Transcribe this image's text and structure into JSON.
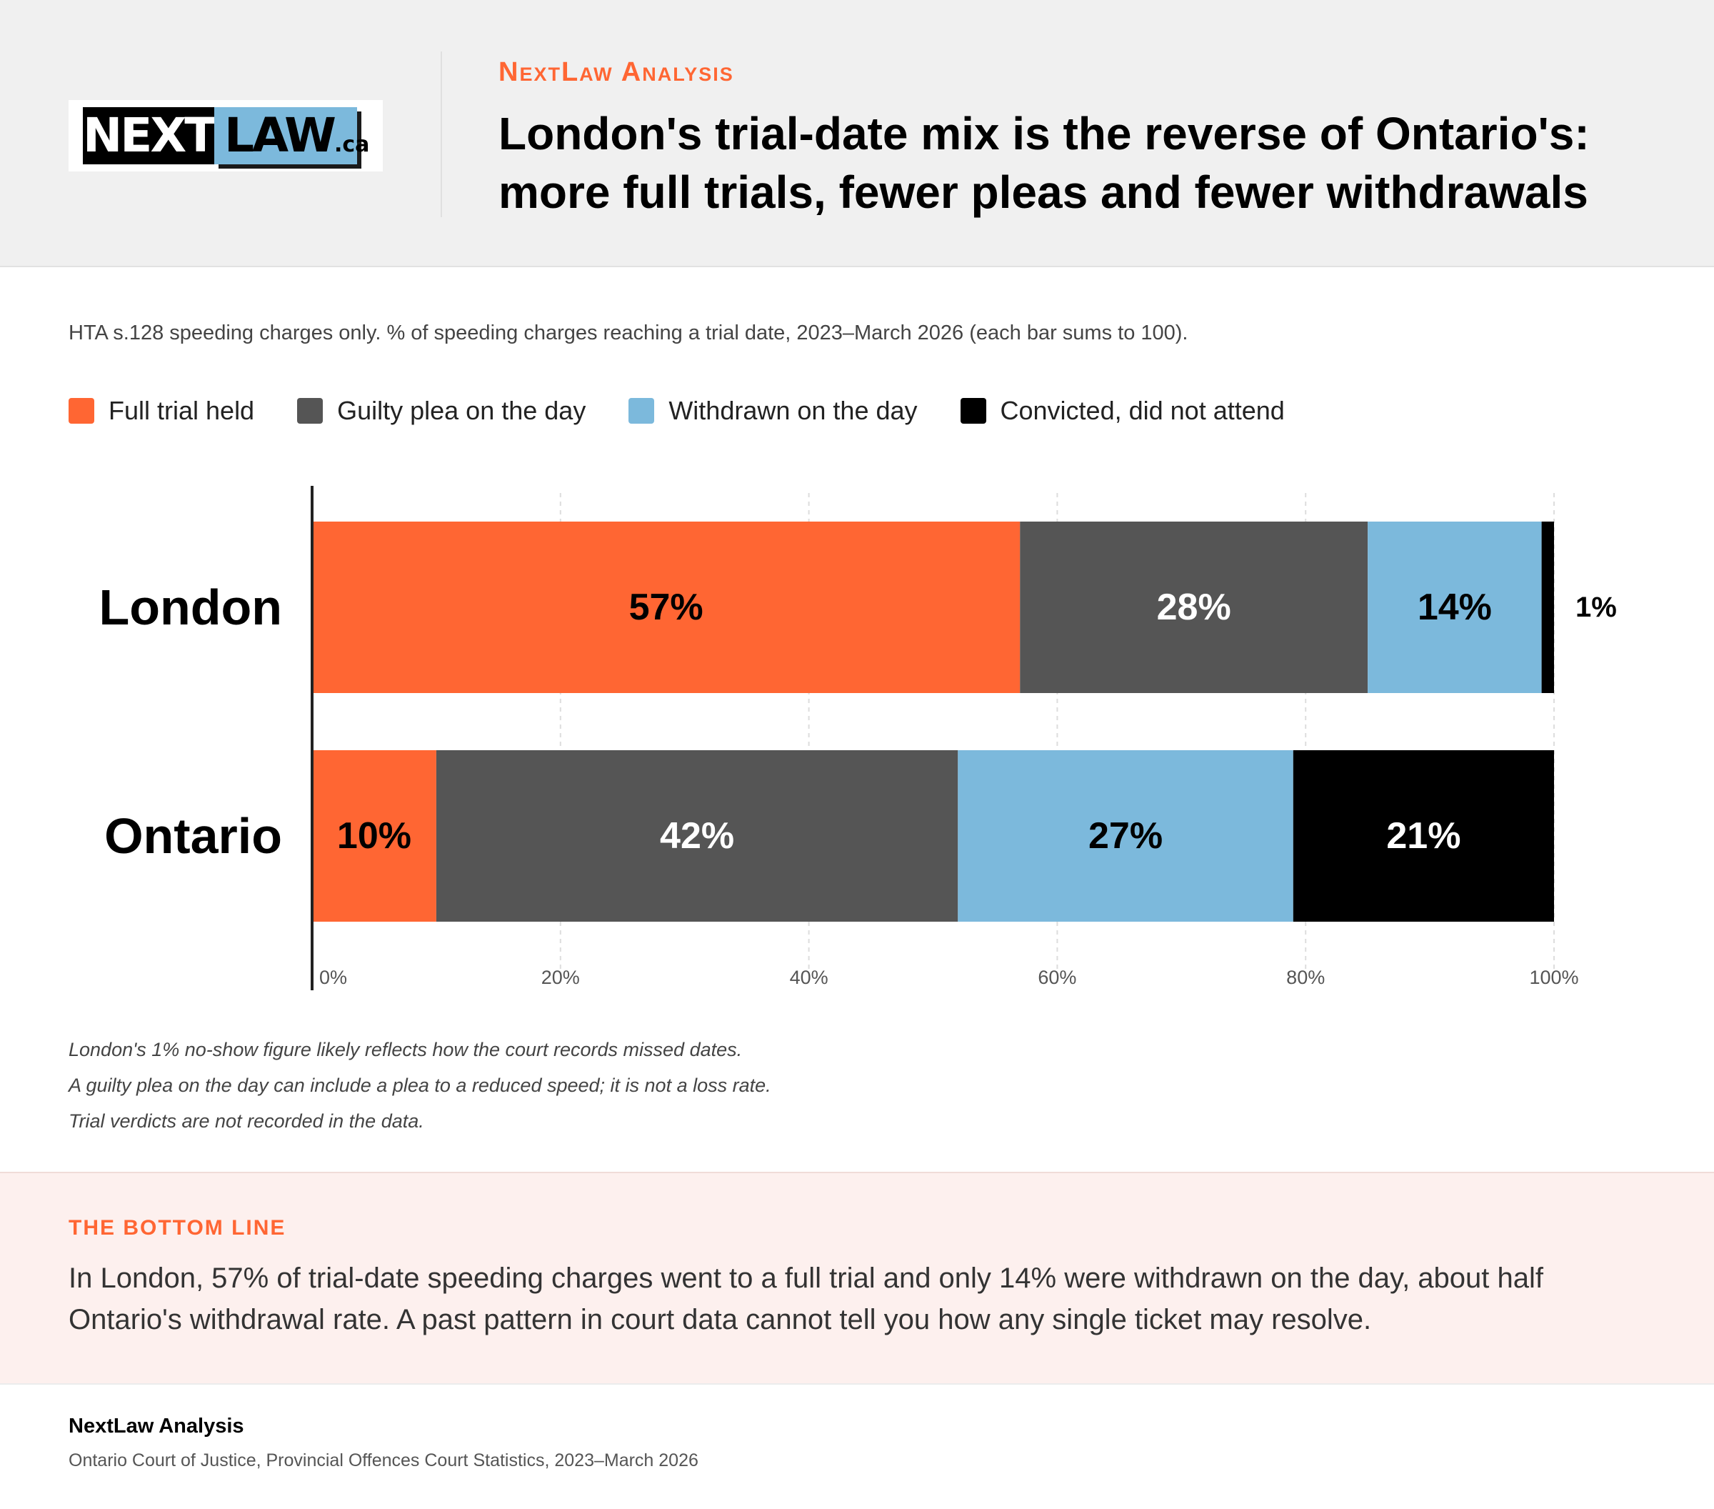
{
  "header": {
    "logo": {
      "part1": "NEXT",
      "part2": "LAW",
      "part3": ".ca"
    },
    "kicker": "NextLaw Analysis",
    "title": "London's trial-date mix is the reverse of Ontario's: more full trials, fewer pleas and fewer withdrawals"
  },
  "subtitle": "HTA s.128 speeding charges only. % of speeding charges reaching a trial date, 2023–March 2026 (each bar sums to 100).",
  "legend": [
    {
      "label": "Full trial held",
      "color": "#ff6633"
    },
    {
      "label": "Guilty plea on the day",
      "color": "#555555"
    },
    {
      "label": "Withdrawn on the day",
      "color": "#7cb9dc"
    },
    {
      "label": "Convicted, did not attend",
      "color": "#000000"
    }
  ],
  "chart_data": {
    "type": "bar",
    "orientation": "horizontal",
    "stacked": true,
    "categories": [
      "London",
      "Ontario"
    ],
    "series": [
      {
        "name": "Full trial held",
        "color": "#ff6633",
        "label_color": "#000000",
        "values": [
          57,
          10
        ]
      },
      {
        "name": "Guilty plea on the day",
        "color": "#555555",
        "label_color": "#ffffff",
        "values": [
          28,
          42
        ]
      },
      {
        "name": "Withdrawn on the day",
        "color": "#7cb9dc",
        "label_color": "#000000",
        "values": [
          14,
          27
        ]
      },
      {
        "name": "Convicted, did not attend",
        "color": "#000000",
        "label_color": "#ffffff",
        "values": [
          1,
          21
        ]
      }
    ],
    "xlim": [
      0,
      100
    ],
    "xticks": [
      "0%",
      "20%",
      "40%",
      "60%",
      "80%",
      "100%"
    ],
    "grid": true,
    "legend_position": "top-left"
  },
  "notes": [
    "London's 1% no-show figure likely reflects how the court records missed dates.",
    "A guilty plea on the day can include a plea to a reduced speed; it is not a loss rate.",
    "Trial verdicts are not recorded in the data."
  ],
  "bottom_line": {
    "kicker": "THE BOTTOM LINE",
    "text": "In London, 57% of trial-date speeding charges went to a full trial and only 14% were withdrawn on the day, about half Ontario's withdrawal rate. A past pattern in court data cannot tell you how any single ticket may resolve."
  },
  "footer": {
    "title": "NextLaw Analysis",
    "source": "Ontario Court of Justice, Provincial Offences Court Statistics, 2023–March 2026"
  }
}
